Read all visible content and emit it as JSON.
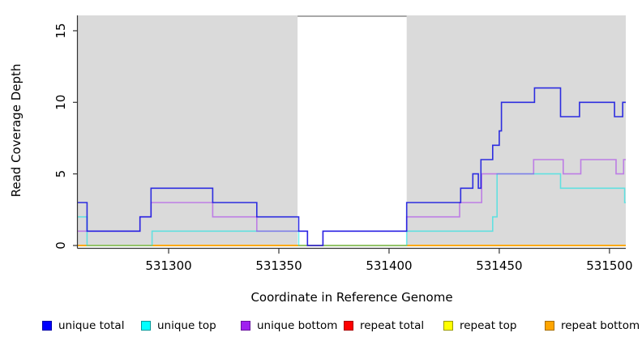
{
  "chart_data": {
    "type": "line",
    "subtype": "step",
    "title": "",
    "xlabel": "Coordinate in Reference Genome",
    "ylabel": "Read Coverage Depth",
    "xlim": [
      531258.8,
      531507.4
    ],
    "ylim": [
      0,
      16.1
    ],
    "x_ticks": [
      531300,
      531350,
      531400,
      531450,
      531500
    ],
    "y_ticks": [
      0,
      5,
      10,
      15
    ],
    "grid": false,
    "legend_position": "bottom",
    "panel_bg": "#dadada",
    "axis_color": "#333333",
    "highlight_region": {
      "x0": 531358.5,
      "x1": 531408.0,
      "fill": "#ffffff",
      "border_top": "#8c8c8c"
    },
    "series": [
      {
        "name": "repeat total",
        "line_color": "#e00000",
        "opacity": 1,
        "steps": [
          [
            531258.8,
            0
          ]
        ]
      },
      {
        "name": "repeat top",
        "line_color": "#ffff00",
        "opacity": 1,
        "steps": [
          [
            531258.8,
            0
          ]
        ]
      },
      {
        "name": "repeat bottom",
        "line_color": "#ffa500",
        "opacity": 1,
        "steps": [
          [
            531258.8,
            0
          ]
        ]
      },
      {
        "name": "unique top",
        "line_color": "#00e5e5",
        "opacity": 0.55,
        "steps": [
          [
            531258.8,
            2
          ],
          [
            531263,
            0
          ],
          [
            531292.5,
            1
          ],
          [
            531359,
            0
          ],
          [
            531408,
            1
          ],
          [
            531447,
            2
          ],
          [
            531449,
            5
          ],
          [
            531477.8,
            4
          ],
          [
            531506.9,
            3
          ]
        ]
      },
      {
        "name": "unique bottom",
        "line_color": "#a020f0",
        "opacity": 0.5,
        "steps": [
          [
            531258.8,
            1
          ],
          [
            531287,
            2
          ],
          [
            531292,
            3
          ],
          [
            531320,
            2
          ],
          [
            531340,
            1
          ],
          [
            531363,
            0
          ],
          [
            531370,
            1
          ],
          [
            531408,
            2
          ],
          [
            531432,
            3
          ],
          [
            531442,
            5
          ],
          [
            531465.6,
            6
          ],
          [
            531479,
            5
          ],
          [
            531487,
            6
          ],
          [
            531503,
            5
          ],
          [
            531506.4,
            6
          ]
        ]
      },
      {
        "name": "unique total",
        "line_color": "#1a1ae0",
        "opacity": 0.9,
        "steps": [
          [
            531258.8,
            3
          ],
          [
            531263,
            1
          ],
          [
            531287,
            2
          ],
          [
            531292,
            4
          ],
          [
            531320,
            3
          ],
          [
            531340,
            2
          ],
          [
            531359,
            1
          ],
          [
            531363,
            0
          ],
          [
            531370,
            1
          ],
          [
            531408,
            3
          ],
          [
            531432.5,
            4
          ],
          [
            531438,
            5
          ],
          [
            531440.5,
            4
          ],
          [
            531441.7,
            6
          ],
          [
            531447,
            7
          ],
          [
            531450,
            8
          ],
          [
            531451,
            10
          ],
          [
            531466,
            11
          ],
          [
            531477.8,
            9
          ],
          [
            531486.4,
            10
          ],
          [
            531502.3,
            9
          ],
          [
            531506,
            10
          ]
        ]
      }
    ]
  },
  "legend": {
    "items": [
      {
        "label": "unique total",
        "fill": "#0000ff",
        "border": "#0000a8"
      },
      {
        "label": "unique top",
        "fill": "#00ffff",
        "border": "#009999"
      },
      {
        "label": "unique bottom",
        "fill": "#a020f0",
        "border": "#6a14a0"
      },
      {
        "label": "repeat total",
        "fill": "#ff0000",
        "border": "#a80000"
      },
      {
        "label": "repeat top",
        "fill": "#ffff00",
        "border": "#999900"
      },
      {
        "label": "repeat bottom",
        "fill": "#ffa500",
        "border": "#a86e00"
      }
    ]
  }
}
